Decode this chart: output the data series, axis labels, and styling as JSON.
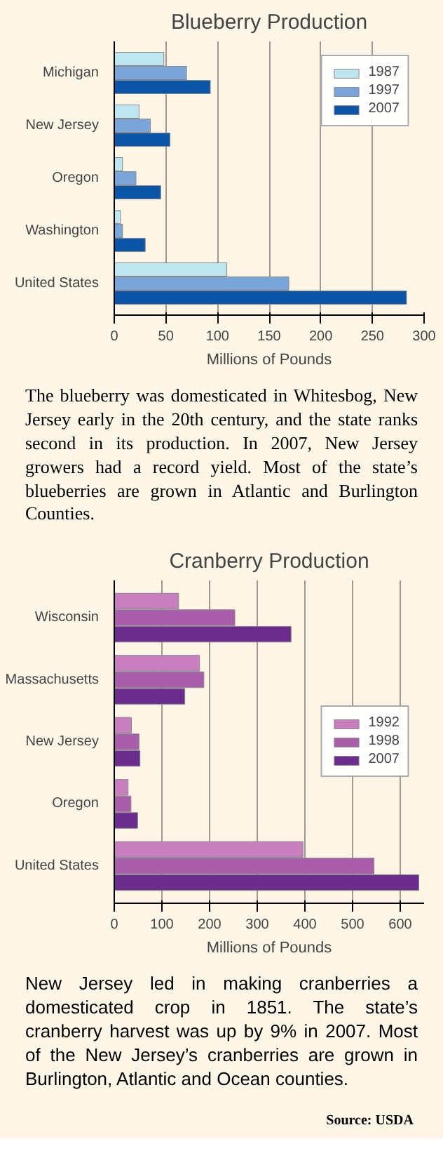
{
  "chart_data": [
    {
      "type": "bar",
      "orientation": "horizontal",
      "title": "Blueberry Production",
      "xlabel": "Millions of Pounds",
      "categories": [
        "Michigan",
        "New Jersey",
        "Oregon",
        "Washington",
        "United States"
      ],
      "series": [
        {
          "name": "1987",
          "color": "#bde6f0",
          "values": [
            48,
            24,
            8,
            6,
            109
          ]
        },
        {
          "name": "1997",
          "color": "#7aa5d8",
          "values": [
            70,
            35,
            21,
            8,
            169
          ]
        },
        {
          "name": "2007",
          "color": "#0a55a5",
          "values": [
            93,
            54,
            45,
            30,
            283
          ]
        }
      ],
      "xlim": [
        0,
        300
      ],
      "xticks": [
        0,
        50,
        100,
        150,
        200,
        250,
        300
      ],
      "grid": "x",
      "legend": "top right",
      "annotations": [
        "The blueberry was domesticated in Whitesbog, New Jersey early in the 20th century, and the state ranks second in its production.  In 2007, New Jersey growers had a record yield.  Most of the state’s blueberries are grown in Atlantic and Burlington Counties."
      ]
    },
    {
      "type": "bar",
      "orientation": "horizontal",
      "title": "Cranberry Production",
      "xlabel": "Millions of Pounds",
      "categories": [
        "Wisconsin",
        "Massachusetts",
        "New Jersey",
        "Oregon",
        "United States"
      ],
      "series": [
        {
          "name": "1992",
          "color": "#c87fbf",
          "values": [
            135,
            179,
            36,
            29,
            396
          ]
        },
        {
          "name": "1998",
          "color": "#a85ea8",
          "values": [
            253,
            188,
            52,
            35,
            545
          ]
        },
        {
          "name": "2007",
          "color": "#6a2d8e",
          "values": [
            371,
            148,
            54,
            49,
            639
          ]
        }
      ],
      "xlim": [
        0,
        650
      ],
      "xticks": [
        0,
        100,
        200,
        300,
        400,
        500,
        600
      ],
      "grid": "x",
      "legend": "right",
      "annotations": [
        "New Jersey led in making cranberries a domesticated crop in 1851. The state’s cranberry harvest was up by 9% in 2007. Most of the New Jersey’s cranberries are grown in Burlington, Atlantic and Ocean counties.",
        "Source: USDA"
      ]
    }
  ]
}
